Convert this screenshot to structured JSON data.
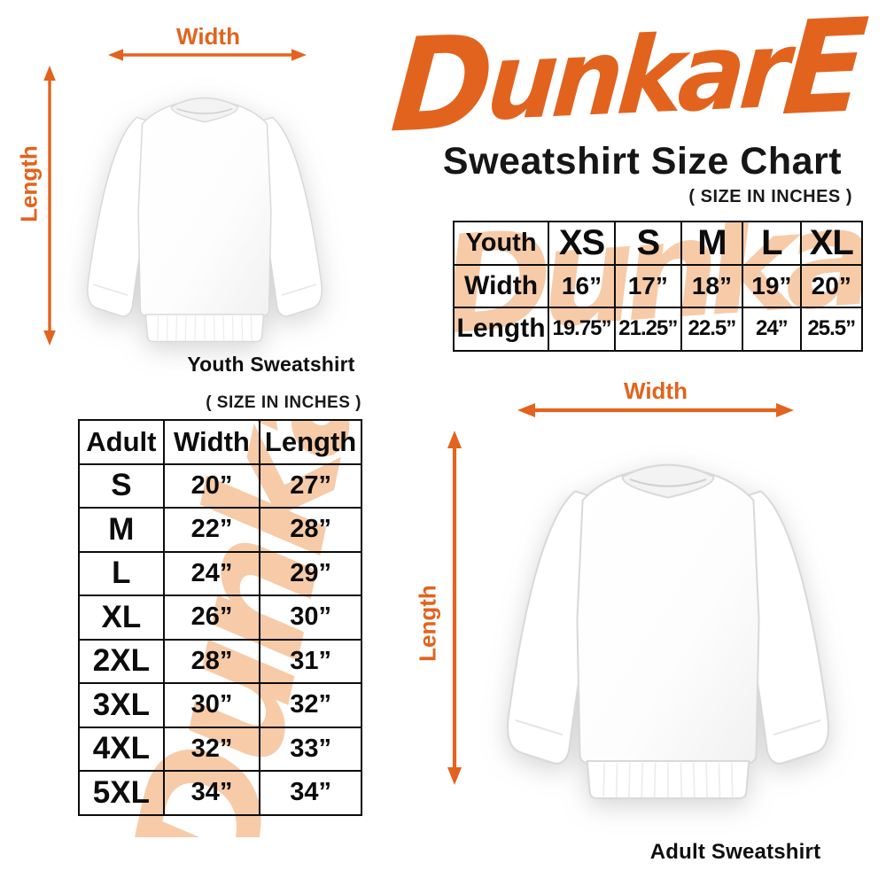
{
  "colors": {
    "accent": "#E2631E",
    "watermark": "#F7CBA8"
  },
  "logo": {
    "d": "D",
    "mid": "unkar",
    "e": "E"
  },
  "header": {
    "title": "Sweatshirt Size Chart",
    "size_note": "( SIZE IN INCHES )"
  },
  "watermark_text": "Dunkare",
  "youth_diagram": {
    "width_label": "Width",
    "length_label": "Length",
    "caption": "Youth Sweatshirt"
  },
  "adult_diagram": {
    "width_label": "Width",
    "length_label": "Length",
    "caption": "Adult Sweatshirt"
  },
  "adult_section": {
    "size_note": "( SIZE IN INCHES )"
  },
  "youth_table": {
    "grid": [
      [
        "Youth",
        "XS",
        "S",
        "M",
        "L",
        "XL"
      ],
      [
        "Width",
        "16”",
        "17”",
        "18”",
        "19”",
        "20”"
      ],
      [
        "Length",
        "19.75”",
        "21.25”",
        "22.5”",
        "24”",
        "25.5”"
      ]
    ]
  },
  "adult_table": {
    "grid": [
      [
        "Adult",
        "Width",
        "Length"
      ],
      [
        "S",
        "20”",
        "27”"
      ],
      [
        "M",
        "22”",
        "28”"
      ],
      [
        "L",
        "24”",
        "29”"
      ],
      [
        "XL",
        "26”",
        "30”"
      ],
      [
        "2XL",
        "28”",
        "31”"
      ],
      [
        "3XL",
        "30”",
        "32”"
      ],
      [
        "4XL",
        "32”",
        "33”"
      ],
      [
        "5XL",
        "34”",
        "34”"
      ]
    ]
  }
}
